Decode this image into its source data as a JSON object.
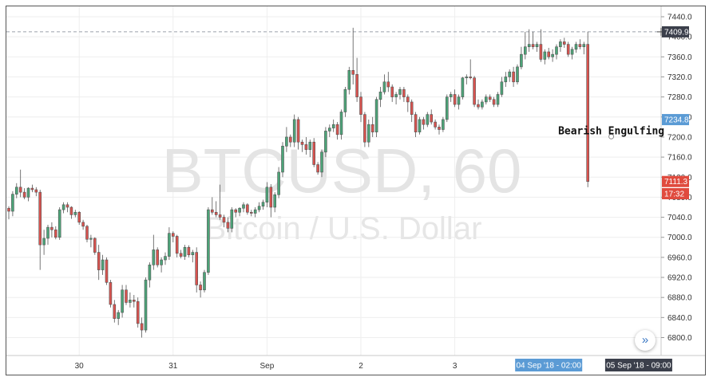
{
  "watermark": {
    "symbol": "BTCUSD, 60",
    "description": "Bitcoin / U.S. Dollar"
  },
  "annotation": {
    "text": "Bearish Engulfing"
  },
  "scroll_button": {
    "icon": "»"
  },
  "chart_data": {
    "type": "candlestick",
    "timeframe_minutes": 60,
    "ylim": [
      6780,
      7450
    ],
    "y_ticks": [
      6800,
      6840,
      6880,
      6920,
      6960,
      7000,
      7040,
      7080,
      7120,
      7160,
      7200,
      7240,
      7280,
      7320,
      7360,
      7400,
      7440
    ],
    "x_ticks": [
      {
        "label": "30",
        "bar": 18
      },
      {
        "label": "31",
        "bar": 42
      },
      {
        "label": "Sep",
        "bar": 66
      },
      {
        "label": "2",
        "bar": 90
      },
      {
        "label": "3",
        "bar": 114
      }
    ],
    "price_tags": [
      {
        "text": "7409.9",
        "value": 7409.9,
        "color": "#3b3f4b"
      },
      {
        "text": "7234.8",
        "value": 7234.8,
        "color": "#5b9bd5"
      },
      {
        "text": "7111.3",
        "value": 7111.3,
        "color": "#e04b3e"
      },
      {
        "text": "17:32",
        "value": 7087,
        "color": "#e04b3e"
      }
    ],
    "crosshair_value": 7409.9,
    "time_tags": [
      {
        "text": "04 Sep '18 - 02:00",
        "bar": 138,
        "color": "#5b9bd5"
      },
      {
        "text": "05 Sep '18 - 09:00",
        "bar": 161,
        "color": "#3b3f4b"
      }
    ],
    "annotation_value": 7201,
    "annotation_bar": 154,
    "colors": {
      "up": "#4ca478",
      "down": "#d9534f"
    },
    "candles": [
      [
        7058,
        7062,
        7036,
        7052
      ],
      [
        7052,
        7092,
        7042,
        7086
      ],
      [
        7086,
        7108,
        7078,
        7100
      ],
      [
        7100,
        7135,
        7080,
        7090
      ],
      [
        7090,
        7098,
        7076,
        7080
      ],
      [
        7080,
        7100,
        7072,
        7098
      ],
      [
        7098,
        7105,
        7090,
        7095
      ],
      [
        7095,
        7100,
        7082,
        7090
      ],
      [
        7090,
        7095,
        6935,
        6985
      ],
      [
        6985,
        7015,
        6965,
        6998
      ],
      [
        6998,
        7025,
        6985,
        7020
      ],
      [
        7020,
        7030,
        7000,
        7015
      ],
      [
        7015,
        7022,
        6996,
        7000
      ],
      [
        7000,
        7060,
        6995,
        7055
      ],
      [
        7055,
        7070,
        7048,
        7065
      ],
      [
        7065,
        7070,
        7050,
        7060
      ],
      [
        7060,
        7062,
        7037,
        7045
      ],
      [
        7045,
        7055,
        7040,
        7050
      ],
      [
        7050,
        7052,
        7025,
        7030
      ],
      [
        7030,
        7035,
        7015,
        7022
      ],
      [
        7022,
        7025,
        6990,
        6996
      ],
      [
        6996,
        7005,
        6980,
        6998
      ],
      [
        6998,
        7000,
        6965,
        6970
      ],
      [
        6970,
        6985,
        6915,
        6935
      ],
      [
        6935,
        6965,
        6925,
        6955
      ],
      [
        6955,
        6960,
        6905,
        6910
      ],
      [
        6910,
        6915,
        6860,
        6866
      ],
      [
        6866,
        6875,
        6830,
        6838
      ],
      [
        6838,
        6855,
        6825,
        6850
      ],
      [
        6850,
        6905,
        6840,
        6895
      ],
      [
        6895,
        6905,
        6865,
        6870
      ],
      [
        6870,
        6890,
        6860,
        6875
      ],
      [
        6875,
        6885,
        6860,
        6872
      ],
      [
        6872,
        6880,
        6820,
        6828
      ],
      [
        6828,
        6840,
        6800,
        6815
      ],
      [
        6815,
        6920,
        6810,
        6915
      ],
      [
        6915,
        6950,
        6900,
        6945
      ],
      [
        6945,
        7005,
        6935,
        6975
      ],
      [
        6975,
        6980,
        6940,
        6945
      ],
      [
        6945,
        6960,
        6930,
        6955
      ],
      [
        6955,
        6970,
        6945,
        6962
      ],
      [
        6962,
        7020,
        6955,
        7008
      ],
      [
        7008,
        7012,
        6990,
        7002
      ],
      [
        7002,
        7005,
        6960,
        6968
      ],
      [
        6968,
        6975,
        6958,
        6962
      ],
      [
        6962,
        6985,
        6955,
        6980
      ],
      [
        6980,
        6984,
        6960,
        6965
      ],
      [
        6965,
        6975,
        6950,
        6970
      ],
      [
        6970,
        6980,
        6890,
        6905
      ],
      [
        6905,
        6912,
        6880,
        6895
      ],
      [
        6895,
        6935,
        6890,
        6930
      ],
      [
        6930,
        7060,
        6925,
        7055
      ],
      [
        7055,
        7080,
        7045,
        7050
      ],
      [
        7050,
        7072,
        7040,
        7045
      ],
      [
        7045,
        7105,
        7035,
        7040
      ],
      [
        7040,
        7045,
        7020,
        7030
      ],
      [
        7030,
        7040,
        7010,
        7018
      ],
      [
        7018,
        7060,
        7010,
        7055
      ],
      [
        7055,
        7058,
        7040,
        7050
      ],
      [
        7050,
        7060,
        7042,
        7058
      ],
      [
        7058,
        7070,
        7050,
        7065
      ],
      [
        7065,
        7068,
        7045,
        7050
      ],
      [
        7050,
        7055,
        7042,
        7048
      ],
      [
        7048,
        7060,
        7040,
        7055
      ],
      [
        7055,
        7070,
        7050,
        7062
      ],
      [
        7062,
        7075,
        7055,
        7070
      ],
      [
        7070,
        7110,
        7060,
        7100
      ],
      [
        7100,
        7106,
        7040,
        7060
      ],
      [
        7060,
        7090,
        7050,
        7085
      ],
      [
        7085,
        7140,
        7078,
        7130
      ],
      [
        7130,
        7190,
        7120,
        7182
      ],
      [
        7182,
        7220,
        7170,
        7200
      ],
      [
        7200,
        7205,
        7180,
        7190
      ],
      [
        7190,
        7245,
        7180,
        7235
      ],
      [
        7235,
        7240,
        7175,
        7190
      ],
      [
        7190,
        7195,
        7170,
        7185
      ],
      [
        7185,
        7200,
        7165,
        7175
      ],
      [
        7175,
        7195,
        7160,
        7190
      ],
      [
        7190,
        7198,
        7140,
        7145
      ],
      [
        7145,
        7150,
        7125,
        7130
      ],
      [
        7130,
        7175,
        7120,
        7170
      ],
      [
        7170,
        7220,
        7160,
        7212
      ],
      [
        7212,
        7225,
        7200,
        7218
      ],
      [
        7218,
        7235,
        7210,
        7225
      ],
      [
        7225,
        7230,
        7195,
        7205
      ],
      [
        7205,
        7255,
        7195,
        7250
      ],
      [
        7250,
        7300,
        7240,
        7295
      ],
      [
        7295,
        7340,
        7285,
        7333
      ],
      [
        7333,
        7418,
        7305,
        7325
      ],
      [
        7325,
        7358,
        7270,
        7280
      ],
      [
        7280,
        7290,
        7230,
        7245
      ],
      [
        7245,
        7250,
        7180,
        7190
      ],
      [
        7190,
        7235,
        7180,
        7225
      ],
      [
        7225,
        7240,
        7200,
        7210
      ],
      [
        7210,
        7280,
        7200,
        7275
      ],
      [
        7275,
        7300,
        7260,
        7290
      ],
      [
        7290,
        7325,
        7285,
        7310
      ],
      [
        7310,
        7330,
        7290,
        7300
      ],
      [
        7300,
        7305,
        7270,
        7280
      ],
      [
        7280,
        7290,
        7265,
        7285
      ],
      [
        7285,
        7300,
        7275,
        7295
      ],
      [
        7295,
        7300,
        7270,
        7280
      ],
      [
        7280,
        7285,
        7250,
        7270
      ],
      [
        7270,
        7275,
        7230,
        7245
      ],
      [
        7245,
        7250,
        7200,
        7210
      ],
      [
        7210,
        7240,
        7205,
        7235
      ],
      [
        7235,
        7240,
        7215,
        7225
      ],
      [
        7225,
        7250,
        7220,
        7245
      ],
      [
        7245,
        7255,
        7225,
        7230
      ],
      [
        7230,
        7235,
        7215,
        7220
      ],
      [
        7220,
        7225,
        7205,
        7215
      ],
      [
        7215,
        7240,
        7210,
        7235
      ],
      [
        7235,
        7285,
        7230,
        7280
      ],
      [
        7280,
        7290,
        7270,
        7285
      ],
      [
        7285,
        7295,
        7260,
        7265
      ],
      [
        7265,
        7285,
        7255,
        7280
      ],
      [
        7280,
        7320,
        7275,
        7318
      ],
      [
        7318,
        7325,
        7305,
        7320
      ],
      [
        7320,
        7355,
        7315,
        7318
      ],
      [
        7318,
        7322,
        7260,
        7265
      ],
      [
        7265,
        7275,
        7255,
        7260
      ],
      [
        7260,
        7275,
        7255,
        7270
      ],
      [
        7270,
        7285,
        7265,
        7280
      ],
      [
        7280,
        7285,
        7270,
        7275
      ],
      [
        7275,
        7280,
        7260,
        7265
      ],
      [
        7265,
        7290,
        7260,
        7285
      ],
      [
        7285,
        7320,
        7280,
        7310
      ],
      [
        7310,
        7330,
        7300,
        7320
      ],
      [
        7320,
        7335,
        7310,
        7330
      ],
      [
        7330,
        7340,
        7300,
        7310
      ],
      [
        7310,
        7345,
        7305,
        7340
      ],
      [
        7340,
        7380,
        7335,
        7365
      ],
      [
        7365,
        7410,
        7355,
        7380
      ],
      [
        7380,
        7415,
        7370,
        7385
      ],
      [
        7385,
        7410,
        7375,
        7380
      ],
      [
        7380,
        7390,
        7370,
        7385
      ],
      [
        7385,
        7415,
        7350,
        7355
      ],
      [
        7355,
        7375,
        7345,
        7370
      ],
      [
        7370,
        7378,
        7355,
        7360
      ],
      [
        7360,
        7375,
        7350,
        7365
      ],
      [
        7365,
        7385,
        7355,
        7380
      ],
      [
        7380,
        7395,
        7370,
        7390
      ],
      [
        7390,
        7398,
        7378,
        7385
      ],
      [
        7385,
        7390,
        7360,
        7365
      ],
      [
        7365,
        7380,
        7355,
        7375
      ],
      [
        7375,
        7390,
        7368,
        7385
      ],
      [
        7385,
        7395,
        7375,
        7380
      ],
      [
        7380,
        7390,
        7365,
        7385
      ],
      [
        7385,
        7410,
        7100,
        7111.3
      ]
    ]
  }
}
